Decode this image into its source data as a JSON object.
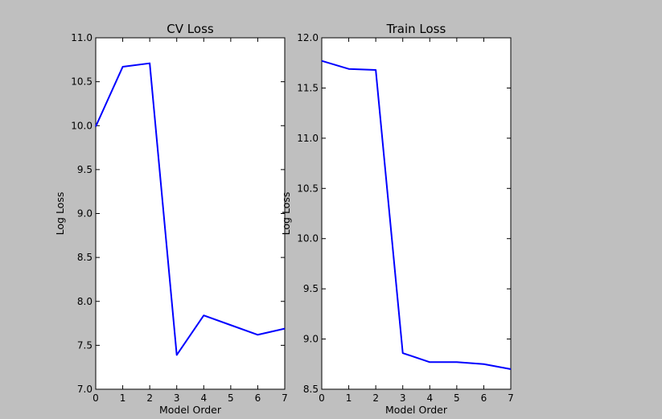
{
  "background_color": "#bfbfbf",
  "line_color": "#0000ff",
  "chart_data": [
    {
      "type": "line",
      "title": "CV Loss",
      "xlabel": "Model Order",
      "ylabel": "Log Loss",
      "xlim": [
        0,
        7
      ],
      "ylim": [
        7.0,
        11.0
      ],
      "xticks": [
        "0",
        "1",
        "2",
        "3",
        "4",
        "5",
        "6",
        "7"
      ],
      "yticks": [
        "7.0",
        "7.5",
        "8.0",
        "8.5",
        "9.0",
        "9.5",
        "10.0",
        "10.5",
        "11.0"
      ],
      "grid": false,
      "series": [
        {
          "x": [
            0,
            1,
            2,
            3,
            4,
            5,
            6,
            7
          ],
          "values": [
            9.99,
            10.67,
            10.71,
            7.39,
            7.84,
            7.73,
            7.62,
            7.69
          ]
        }
      ]
    },
    {
      "type": "line",
      "title": "Train Loss",
      "xlabel": "Model Order",
      "ylabel": "Log Loss",
      "xlim": [
        0,
        7
      ],
      "ylim": [
        8.5,
        12.0
      ],
      "xticks": [
        "0",
        "1",
        "2",
        "3",
        "4",
        "5",
        "6",
        "7"
      ],
      "yticks": [
        "8.5",
        "9.0",
        "9.5",
        "10.0",
        "10.5",
        "11.0",
        "11.5",
        "12.0"
      ],
      "grid": false,
      "series": [
        {
          "x": [
            0,
            1,
            2,
            3,
            4,
            5,
            6,
            7
          ],
          "values": [
            11.77,
            11.69,
            11.68,
            8.86,
            8.77,
            8.77,
            8.75,
            8.7
          ]
        }
      ]
    }
  ]
}
